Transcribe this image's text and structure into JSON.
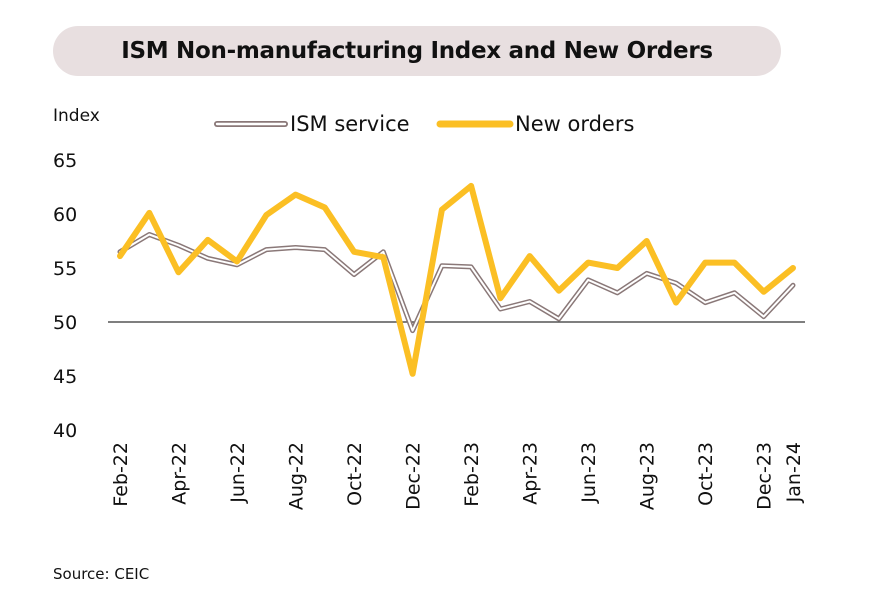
{
  "title": "ISM Non-manufacturing Index and New Orders",
  "source": "Source: CEIC",
  "colors": {
    "ism_service_outer": "#8a7878",
    "ism_service_inner": "#ffffff",
    "new_orders": "#fbbf24",
    "pill": "#e8dfe0",
    "baseline": "#333333"
  },
  "chart_data": {
    "type": "line",
    "ylabel": "Index",
    "ylim": [
      40,
      65
    ],
    "yticks": [
      40,
      45,
      50,
      55,
      60,
      65
    ],
    "reference_line": 50,
    "legend_position": "top",
    "grid": false,
    "x": [
      "Feb-22",
      "Mar-22",
      "Apr-22",
      "May-22",
      "Jun-22",
      "Jul-22",
      "Aug-22",
      "Sep-22",
      "Oct-22",
      "Nov-22",
      "Dec-22",
      "Jan-23",
      "Feb-23",
      "Mar-23",
      "Apr-23",
      "May-23",
      "Jun-23",
      "Jul-23",
      "Aug-23",
      "Sep-23",
      "Oct-23",
      "Nov-23",
      "Dec-23",
      "Jan-24"
    ],
    "xtick_labels": [
      "Feb-22",
      "Apr-22",
      "Jun-22",
      "Aug-22",
      "Oct-22",
      "Dec-22",
      "Feb-23",
      "Apr-23",
      "Jun-23",
      "Aug-23",
      "Oct-23",
      "Dec-23",
      "Jan-24"
    ],
    "series": [
      {
        "name": "ISM service",
        "values": [
          56.5,
          58.1,
          57.1,
          55.9,
          55.3,
          56.7,
          56.9,
          56.7,
          54.4,
          56.5,
          49.2,
          55.2,
          55.1,
          51.2,
          51.9,
          50.3,
          53.9,
          52.7,
          54.5,
          53.6,
          51.8,
          52.7,
          50.5,
          53.4
        ]
      },
      {
        "name": "New orders",
        "values": [
          56.1,
          60.1,
          54.6,
          57.6,
          55.6,
          59.9,
          61.8,
          60.6,
          56.5,
          56.0,
          45.2,
          60.4,
          62.6,
          52.2,
          56.1,
          52.9,
          55.5,
          55.0,
          57.5,
          51.8,
          55.5,
          55.5,
          52.8,
          55.0
        ]
      }
    ]
  }
}
